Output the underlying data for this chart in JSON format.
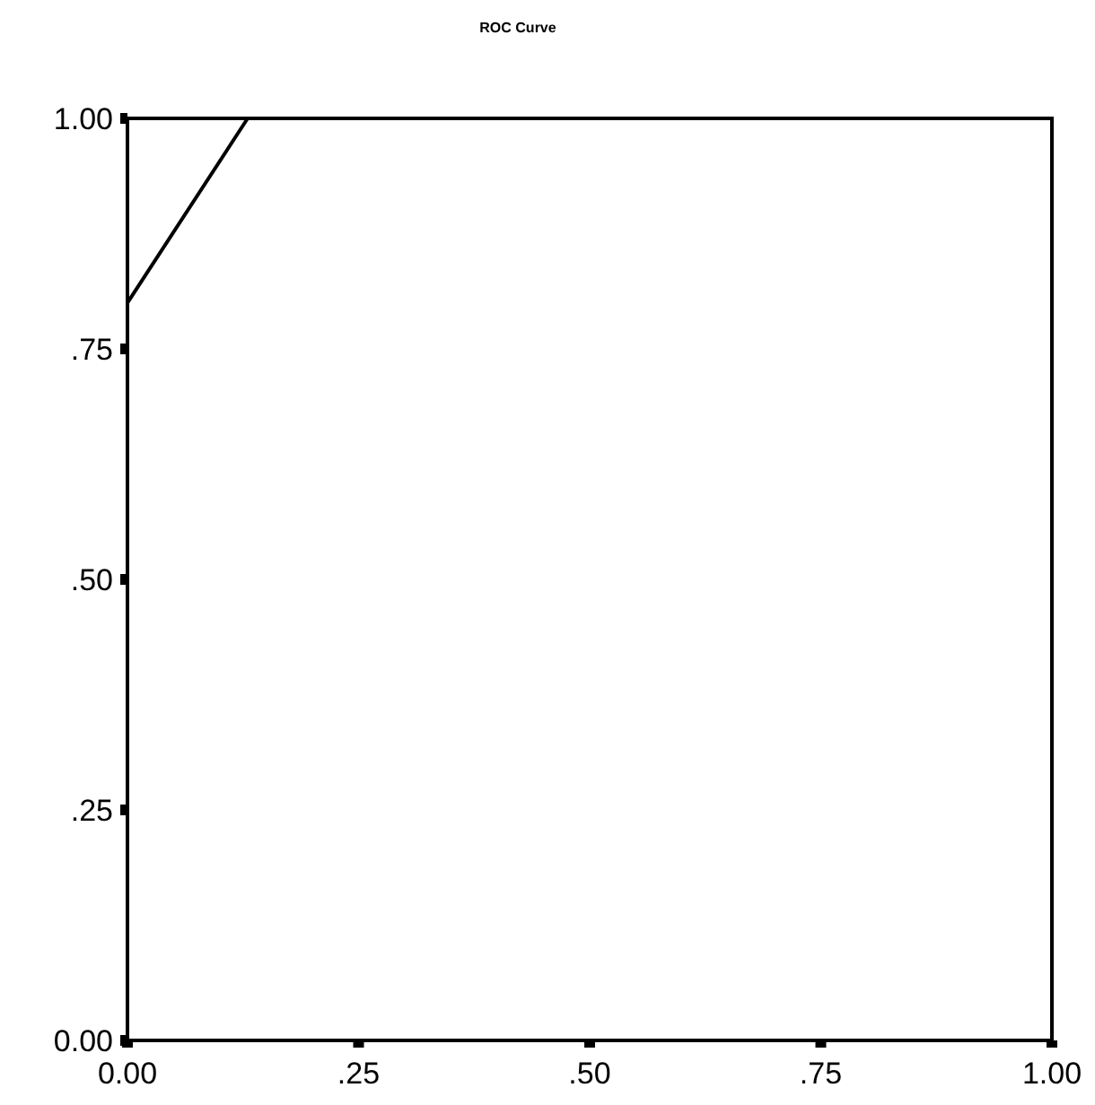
{
  "chart_data": {
    "type": "line",
    "title": "ROC Curve",
    "x": [
      0,
      0,
      0.13,
      1
    ],
    "series": [
      {
        "color": "#000000",
        "values": [
          0,
          0.8,
          1,
          1
        ]
      }
    ],
    "xlim": [
      0,
      1
    ],
    "ylim": [
      0,
      1
    ],
    "xticks": [
      {
        "value": 0,
        "label": "0.00"
      },
      {
        "value": 0.25,
        "label": ".25"
      },
      {
        "value": 0.5,
        "label": ".50"
      },
      {
        "value": 0.75,
        "label": ".75"
      },
      {
        "value": 1,
        "label": "1.00"
      }
    ],
    "yticks": [
      {
        "value": 0,
        "label": "0.00"
      },
      {
        "value": 0.25,
        "label": ".25"
      },
      {
        "value": 0.5,
        "label": ".50"
      },
      {
        "value": 0.75,
        "label": ".75"
      },
      {
        "value": 1,
        "label": "1.00"
      }
    ],
    "grid": false,
    "marker": "none",
    "line_style": "solid"
  }
}
